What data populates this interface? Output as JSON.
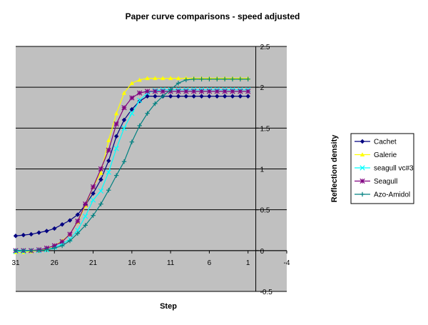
{
  "chart_data": {
    "type": "line",
    "title": "Paper curve comparisons - speed adjusted",
    "xlabel": "Step",
    "ylabel": "Reflection density",
    "x_axis_reversed": true,
    "xlim": [
      31,
      -4
    ],
    "ylim": [
      -0.5,
      2.5
    ],
    "x_ticks": [
      31,
      26,
      21,
      16,
      11,
      6,
      1,
      -4
    ],
    "y_ticks": [
      2.5,
      2,
      1.5,
      1,
      0.5,
      0,
      -0.5
    ],
    "y_axis_side": "right",
    "grid": "horizontal",
    "plot_background": "#c0c0c0",
    "legend_position": "right",
    "series": [
      {
        "name": "Cachet",
        "color": "#000080",
        "marker": "diamond",
        "x": [
          31,
          30,
          29,
          28,
          27,
          26,
          25,
          24,
          23,
          22,
          21,
          20,
          19,
          18,
          17,
          16,
          15,
          14,
          13,
          12,
          11,
          10,
          9,
          8,
          7,
          6,
          5,
          4,
          3,
          2,
          1
        ],
        "values": [
          0.18,
          0.19,
          0.2,
          0.22,
          0.24,
          0.27,
          0.32,
          0.37,
          0.44,
          0.56,
          0.7,
          0.87,
          1.1,
          1.4,
          1.6,
          1.73,
          1.83,
          1.89,
          1.89,
          1.89,
          1.89,
          1.89,
          1.89,
          1.89,
          1.89,
          1.89,
          1.89,
          1.89,
          1.89,
          1.89,
          1.89
        ]
      },
      {
        "name": "Galerie",
        "color": "#ffff00",
        "marker": "triangle",
        "x": [
          31,
          30,
          29,
          28,
          27,
          26,
          25,
          24,
          23,
          22,
          21,
          20,
          19,
          18,
          17,
          16,
          15,
          14,
          13,
          12,
          11,
          10,
          9,
          8,
          7,
          6,
          5,
          4,
          3,
          2,
          1
        ],
        "values": [
          -0.02,
          -0.02,
          -0.01,
          0,
          0.02,
          0.06,
          0.12,
          0.2,
          0.35,
          0.55,
          0.78,
          0.95,
          1.35,
          1.68,
          1.93,
          2.05,
          2.09,
          2.11,
          2.11,
          2.11,
          2.11,
          2.11,
          2.11,
          2.11,
          2.11,
          2.11,
          2.11,
          2.11,
          2.11,
          2.11,
          2.11
        ]
      },
      {
        "name": "seagull vc#3",
        "color": "#00ffff",
        "marker": "x",
        "x": [
          31,
          30,
          29,
          28,
          27,
          26,
          25,
          24,
          23,
          22,
          21,
          20,
          19,
          18,
          17,
          16,
          15,
          14,
          13,
          12,
          11,
          10,
          9,
          8,
          7,
          6,
          5,
          4,
          3,
          2,
          1
        ],
        "values": [
          -0.01,
          -0.01,
          0,
          0,
          0.01,
          0.04,
          0.08,
          0.14,
          0.25,
          0.42,
          0.62,
          0.73,
          0.96,
          1.25,
          1.5,
          1.68,
          1.84,
          1.93,
          1.96,
          1.97,
          1.97,
          1.97,
          1.97,
          1.97,
          1.97,
          1.97,
          1.97,
          1.97,
          1.97,
          1.97,
          1.97
        ]
      },
      {
        "name": "Seagull",
        "color": "#800080",
        "marker": "star",
        "x": [
          31,
          30,
          29,
          28,
          27,
          26,
          25,
          24,
          23,
          22,
          21,
          20,
          19,
          18,
          17,
          16,
          15,
          14,
          13,
          12,
          11,
          10,
          9,
          8,
          7,
          6,
          5,
          4,
          3,
          2,
          1
        ],
        "values": [
          0,
          0,
          0,
          0.01,
          0.03,
          0.06,
          0.11,
          0.2,
          0.36,
          0.57,
          0.78,
          1,
          1.23,
          1.55,
          1.75,
          1.87,
          1.93,
          1.95,
          1.95,
          1.95,
          1.95,
          1.95,
          1.95,
          1.95,
          1.95,
          1.95,
          1.95,
          1.95,
          1.95,
          1.95,
          1.95
        ]
      },
      {
        "name": "Azo-Amidol",
        "color": "#008080",
        "marker": "plus",
        "x": [
          31,
          30,
          29,
          28,
          27,
          26,
          25,
          24,
          23,
          22,
          21,
          20,
          19,
          18,
          17,
          16,
          15,
          14,
          13,
          12,
          11,
          10,
          9,
          8,
          7,
          6,
          5,
          4,
          3,
          2,
          1
        ],
        "values": [
          0,
          0,
          0,
          0,
          0.01,
          0.03,
          0.06,
          0.12,
          0.21,
          0.31,
          0.43,
          0.57,
          0.74,
          0.92,
          1.09,
          1.33,
          1.53,
          1.68,
          1.8,
          1.89,
          1.97,
          2.05,
          2.09,
          2.1,
          2.1,
          2.1,
          2.1,
          2.1,
          2.1,
          2.1,
          2.1
        ]
      }
    ]
  }
}
